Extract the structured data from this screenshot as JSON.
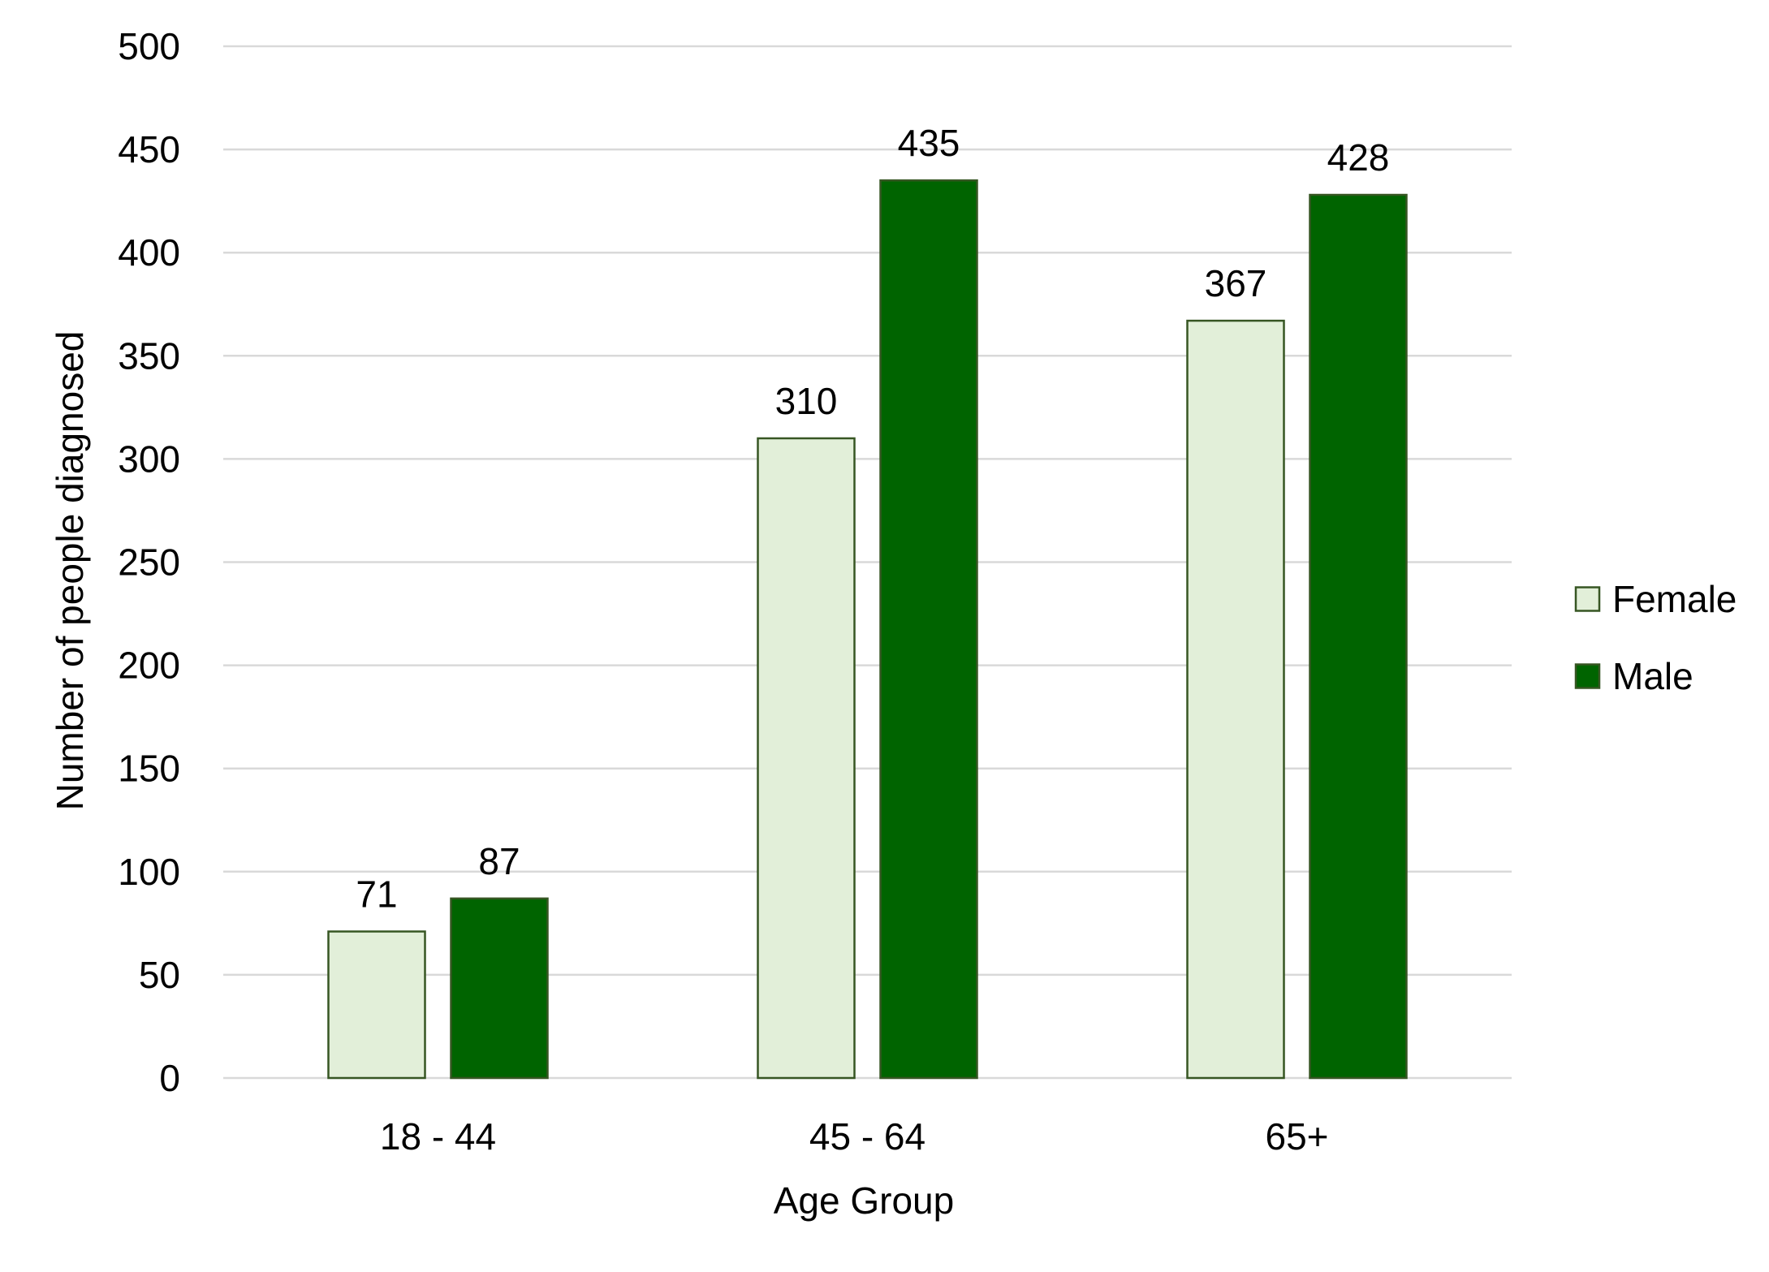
{
  "chart_data": {
    "type": "bar",
    "title": "",
    "xlabel": "Age Group",
    "ylabel": "Number of people diagnosed",
    "categories": [
      "18 - 44",
      "45 - 64",
      "65+"
    ],
    "series": [
      {
        "name": "Female",
        "values": [
          71,
          310,
          367
        ],
        "color": "#e2efd9",
        "border": "#375623"
      },
      {
        "name": "Male",
        "values": [
          87,
          435,
          428
        ],
        "color": "#006400",
        "border": "#375623"
      }
    ],
    "ylim": [
      0,
      500
    ],
    "yticks": [
      0,
      50,
      100,
      150,
      200,
      250,
      300,
      350,
      400,
      450,
      500
    ],
    "grid": true,
    "legend": "right",
    "data_labels": true
  }
}
